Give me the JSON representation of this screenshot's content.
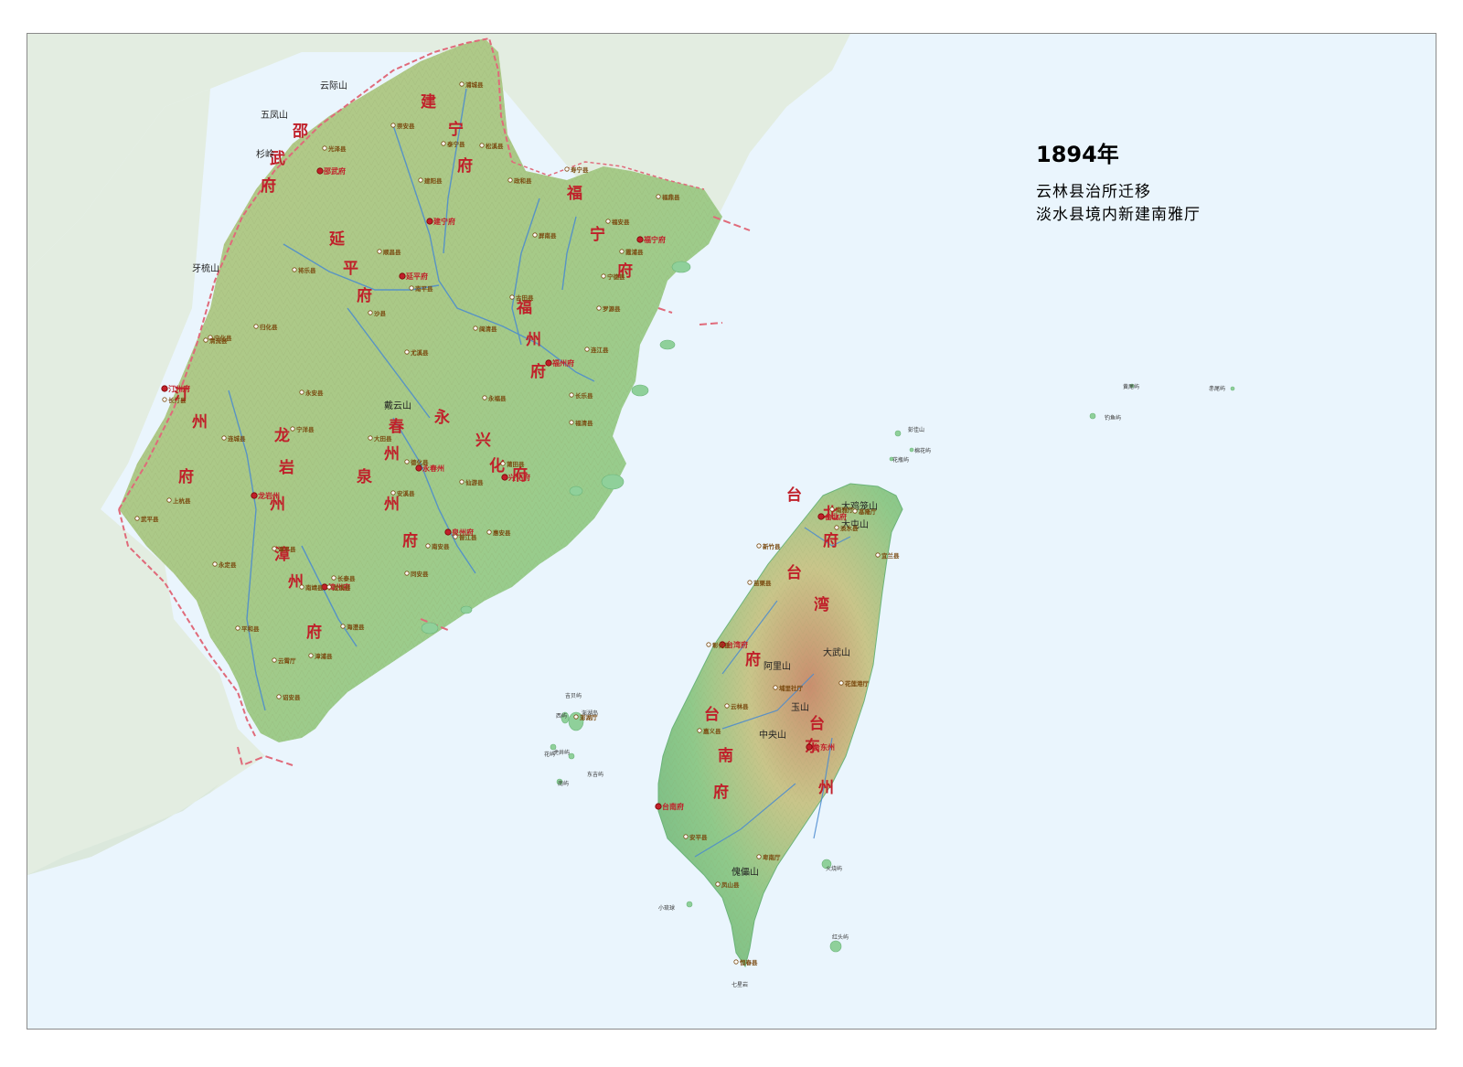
{
  "map": {
    "year": "1894年",
    "changes": [
      "云林县治所迁移",
      "淡水县境内新建南雅厅"
    ],
    "colors": {
      "sea": "#eaf5fd",
      "land_low": "#8fc98a",
      "land_mid": "#c9c58a",
      "land_high": "#c98e6e",
      "outside_land": "#e3ede1",
      "border": "#e06a7a",
      "river": "#4a8ad0",
      "prefecture_label": "#c0202a",
      "county_label": "#7a4a10"
    },
    "prefecture_labels": [
      "邵武府",
      "建宁府",
      "福宁府",
      "延平府",
      "福州府",
      "汀州府",
      "龙岩州",
      "永春州",
      "兴化府",
      "泉州府",
      "漳州府",
      "台北府",
      "台湾府",
      "台南府",
      "台东州"
    ],
    "prefecture_chars": {
      "shaowu": [
        "邵",
        "武",
        "府"
      ],
      "jianning": [
        "建",
        "宁",
        "府"
      ],
      "funing": [
        "福",
        "宁",
        "府"
      ],
      "yanping": [
        "延",
        "平",
        "府"
      ],
      "fuzhou": [
        "福",
        "州",
        "府"
      ],
      "tingzhou": [
        "汀",
        "州",
        "府"
      ],
      "longyan": [
        "龙",
        "岩",
        "州"
      ],
      "yongchun": [
        "永",
        "春",
        "州"
      ],
      "xinghua": [
        "兴",
        "化",
        "府"
      ],
      "quanzhou": [
        "泉",
        "州",
        "府"
      ],
      "zhangzhou": [
        "漳",
        "州",
        "府"
      ],
      "taibei": [
        "台",
        "北",
        "府"
      ],
      "taiwan": [
        "台",
        "湾",
        "府"
      ],
      "tainan": [
        "台",
        "南",
        "府"
      ],
      "taidong": [
        "台",
        "东",
        "州"
      ]
    },
    "seats": [
      "邵武府",
      "建宁府",
      "福宁府",
      "延平府",
      "福州府",
      "汀州府",
      "龙岩州",
      "永春州",
      "兴化府",
      "泉州府",
      "漳州府",
      "台北府",
      "台湾府",
      "台南府",
      "台东州",
      "光泽县",
      "泰宁县",
      "将乐县",
      "沙县",
      "永安县",
      "宁化县",
      "清流县",
      "归化县",
      "连城县",
      "上杭县",
      "武平县",
      "永定县",
      "长汀县",
      "宁洋县",
      "大田县",
      "德化县",
      "尤溪县",
      "南平县",
      "顺昌县",
      "建阳县",
      "崇安县",
      "浦城县",
      "松溪县",
      "政和县",
      "寿宁县",
      "福安县",
      "霞浦县",
      "福鼎县",
      "宁德县",
      "罗源县",
      "连江县",
      "长乐县",
      "福清县",
      "闽清县",
      "永福县",
      "古田县",
      "屏南县",
      "仙游县",
      "莆田县",
      "惠安县",
      "晋江县",
      "南安县",
      "安溪县",
      "同安县",
      "长泰县",
      "南靖县",
      "龙溪县",
      "海澄县",
      "漳浦县",
      "云霄厅",
      "诏安县",
      "平和县",
      "漳平县",
      "基隆厅",
      "淡水县",
      "新竹县",
      "苗栗县",
      "宜兰县",
      "彰化县",
      "云林县",
      "嘉义县",
      "安平县",
      "凤山县",
      "恒春县",
      "埔里社厅",
      "花莲港厅",
      "卑南厅",
      "澎湖厅",
      "南雅厅"
    ],
    "mountains": [
      "五凤山",
      "云际山",
      "杉岭",
      "牙梳山",
      "戴云山",
      "大屯山",
      "大武山",
      "玉山",
      "中央山",
      "大鸡笼山",
      "傀儡山",
      "阿里山"
    ],
    "islands": [
      "黄尾屿",
      "赤尾屿",
      "钓鱼屿",
      "彭佳山",
      "棉花屿",
      "花瓶屿",
      "吉贝屿",
      "澎湖岛",
      "西屿",
      "虎井屿",
      "花屿",
      "东吉屿",
      "南屿",
      "小琉球",
      "火烧屿",
      "红头屿",
      "七星岩"
    ]
  }
}
